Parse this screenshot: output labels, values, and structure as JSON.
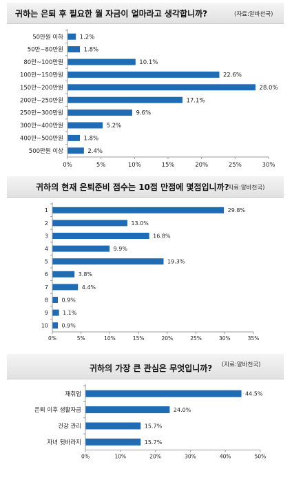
{
  "colors": {
    "bar": "#1f6cb5",
    "axis": "#999999",
    "titlebar": "#e6e6e6"
  },
  "chart_data": [
    {
      "type": "bar",
      "orientation": "horizontal",
      "title": "귀하는 은퇴 후 필요한 월 자금이 얼마라고 생각합니까?",
      "source": "(자료:알바천국)",
      "categories": [
        "50만원 이하",
        "50만~80만원",
        "80만~100만원",
        "100만~150만원",
        "150만~200만원",
        "200만~250만원",
        "250만~300만원",
        "300만~400만원",
        "400만~500만원",
        "500만원 이상"
      ],
      "values": [
        1.2,
        1.8,
        10.1,
        22.6,
        28.0,
        17.1,
        9.6,
        5.2,
        1.8,
        2.4
      ],
      "value_labels": [
        "1.2%",
        "1.8%",
        "10.1%",
        "22.6%",
        "28.0%",
        "17.1%",
        "9.6%",
        "5.2%",
        "1.8%",
        "2.4%"
      ],
      "xlim": [
        0,
        30
      ],
      "x_ticks": [
        "0%",
        "5%",
        "10%",
        "15%",
        "20%",
        "25%",
        "30%"
      ],
      "grid": false
    },
    {
      "type": "bar",
      "orientation": "horizontal",
      "title": "귀하의 현재 은퇴준비 점수는 10점 만점에 몇점입니까?",
      "source": "(자료:알바천국)",
      "categories": [
        "1",
        "2",
        "3",
        "4",
        "5",
        "6",
        "7",
        "8",
        "9",
        "10"
      ],
      "values": [
        29.8,
        13.0,
        16.8,
        9.9,
        19.3,
        3.8,
        4.4,
        0.9,
        1.1,
        0.9
      ],
      "value_labels": [
        "29.8%",
        "13.0%",
        "16.8%",
        "9.9%",
        "19.3%",
        "3.8%",
        "4.4%",
        "0.9%",
        "1.1%",
        "0.9%"
      ],
      "xlim": [
        0,
        35
      ],
      "x_ticks": [
        "0%",
        "5%",
        "10%",
        "15%",
        "20%",
        "25%",
        "30%",
        "35%"
      ],
      "grid": false
    },
    {
      "type": "bar",
      "orientation": "horizontal",
      "title": "귀하의 가장 큰 관심은 무엇입니까?",
      "source": "(자료:알바천국)",
      "categories": [
        "재취업",
        "은퇴 이후 생활자금",
        "건강 관리",
        "자녀 뒷바라지"
      ],
      "values": [
        44.5,
        24.0,
        15.7,
        15.7
      ],
      "value_labels": [
        "44.5%",
        "24.0%",
        "15.7%",
        "15.7%"
      ],
      "xlim": [
        0,
        50
      ],
      "x_ticks": [
        "0%",
        "10%",
        "20%",
        "30%",
        "40%",
        "50%"
      ],
      "grid": false
    }
  ]
}
